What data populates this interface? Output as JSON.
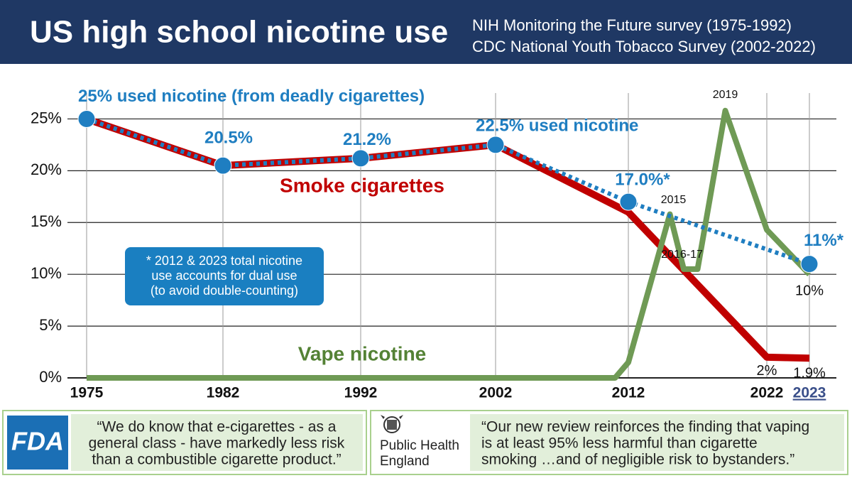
{
  "header": {
    "title": "US high school nicotine use",
    "subtitle": [
      "NIH Monitoring the Future survey (1975-1992)",
      "CDC National Youth Tobacco Survey (2002-2022)"
    ]
  },
  "chart_data": {
    "type": "line",
    "xlim": [
      1975,
      2023
    ],
    "xticks": [
      1975,
      1982,
      1992,
      2002,
      2012,
      2022,
      2023
    ],
    "ylim": [
      0,
      27.5
    ],
    "yticks": [
      {
        "value": 0,
        "label": "0%"
      },
      {
        "value": 5,
        "label": "5%"
      },
      {
        "value": 10,
        "label": "10%"
      },
      {
        "value": 15,
        "label": "15%"
      },
      {
        "value": 20,
        "label": "20%"
      },
      {
        "value": 25,
        "label": "25%"
      }
    ],
    "grid": true,
    "series": [
      {
        "name": "Smoke cigarettes",
        "color": "#c00000",
        "x": [
          1975,
          1982,
          1992,
          2002,
          2012,
          2022,
          2023
        ],
        "values": [
          25,
          20.5,
          21.2,
          22.5,
          16,
          2,
          1.9
        ],
        "value_labels": [
          null,
          null,
          null,
          null,
          null,
          "2%",
          "1.9%"
        ]
      },
      {
        "name": "Vape nicotine",
        "color": "#6f9a55",
        "x": [
          1975,
          2011,
          2012,
          2015,
          2016,
          2017,
          2019,
          2022,
          2023
        ],
        "values": [
          0,
          0,
          1.5,
          15.8,
          10.5,
          10.5,
          25.8,
          14.3,
          10
        ],
        "value_labels": [
          null,
          null,
          null,
          null,
          null,
          null,
          null,
          null,
          "10%"
        ],
        "point_labels": [
          null,
          null,
          null,
          "2015",
          null,
          "2016-17",
          "2019",
          null,
          null
        ]
      },
      {
        "color": "#1f7ec1",
        "x": [
          1975,
          1982,
          1992,
          2002,
          2012,
          2023
        ],
        "values": [
          25,
          20.5,
          21.2,
          22.5,
          17.0,
          11
        ],
        "value_labels": [
          "25% used nicotine (from deadly cigarettes)",
          "20.5%",
          "21.2%",
          "22.5% used nicotine",
          "17.0%*",
          "11%*"
        ]
      }
    ],
    "note": [
      "*  2012 & 2023 total nicotine",
      "use accounts for dual use",
      "(to avoid double-counting)"
    ]
  },
  "quotes": [
    {
      "source": "FDA",
      "lines": [
        "“We do know that e-cigarettes - as a",
        "general class - have markedly less risk",
        "than a combustible cigarette product.”"
      ]
    },
    {
      "source": [
        "Public Health",
        "England"
      ],
      "lines": [
        "“Our new review reinforces the finding that vaping",
        "is at least 95% less harmful than cigarette",
        "smoking …and of negligible risk to bystanders.”"
      ]
    }
  ]
}
